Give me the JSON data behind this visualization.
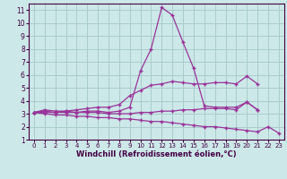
{
  "bg_color": "#cce8e8",
  "grid_color": "#aacccc",
  "line_color": "#993399",
  "x_values": [
    0,
    1,
    2,
    3,
    4,
    5,
    6,
    7,
    8,
    9,
    10,
    11,
    12,
    13,
    14,
    15,
    16,
    17,
    18,
    19,
    20,
    21,
    22,
    23
  ],
  "series_peak": [
    3.1,
    3.2,
    3.1,
    3.2,
    3.1,
    3.2,
    3.2,
    3.1,
    3.2,
    3.5,
    6.3,
    8.0,
    11.2,
    10.6,
    8.5,
    6.5,
    3.6,
    3.5,
    3.5,
    3.5,
    3.9,
    3.3,
    null,
    null
  ],
  "series_rise": [
    3.1,
    3.3,
    3.2,
    3.2,
    3.3,
    3.4,
    3.5,
    3.5,
    3.7,
    4.4,
    4.8,
    5.2,
    5.3,
    5.5,
    5.4,
    5.3,
    5.3,
    5.4,
    5.4,
    5.3,
    5.9,
    5.3,
    null,
    null
  ],
  "series_flat": [
    3.1,
    3.1,
    3.1,
    3.1,
    3.1,
    3.1,
    3.1,
    3.0,
    3.0,
    3.0,
    3.1,
    3.1,
    3.2,
    3.2,
    3.3,
    3.3,
    3.4,
    3.4,
    3.4,
    3.3,
    3.9,
    3.3,
    null,
    null
  ],
  "series_decline": [
    3.1,
    3.0,
    2.9,
    2.9,
    2.8,
    2.8,
    2.7,
    2.7,
    2.6,
    2.6,
    2.5,
    2.4,
    2.4,
    2.3,
    2.2,
    2.1,
    2.0,
    2.0,
    1.9,
    1.8,
    1.7,
    1.6,
    2.0,
    1.5
  ],
  "xlabel": "Windchill (Refroidissement éolien,°C)",
  "ylim": [
    1,
    11.5
  ],
  "xlim": [
    -0.5,
    23.5
  ],
  "yticks": [
    1,
    2,
    3,
    4,
    5,
    6,
    7,
    8,
    9,
    10,
    11
  ],
  "xticks": [
    0,
    1,
    2,
    3,
    4,
    5,
    6,
    7,
    8,
    9,
    10,
    11,
    12,
    13,
    14,
    15,
    16,
    17,
    18,
    19,
    20,
    21,
    22,
    23
  ]
}
